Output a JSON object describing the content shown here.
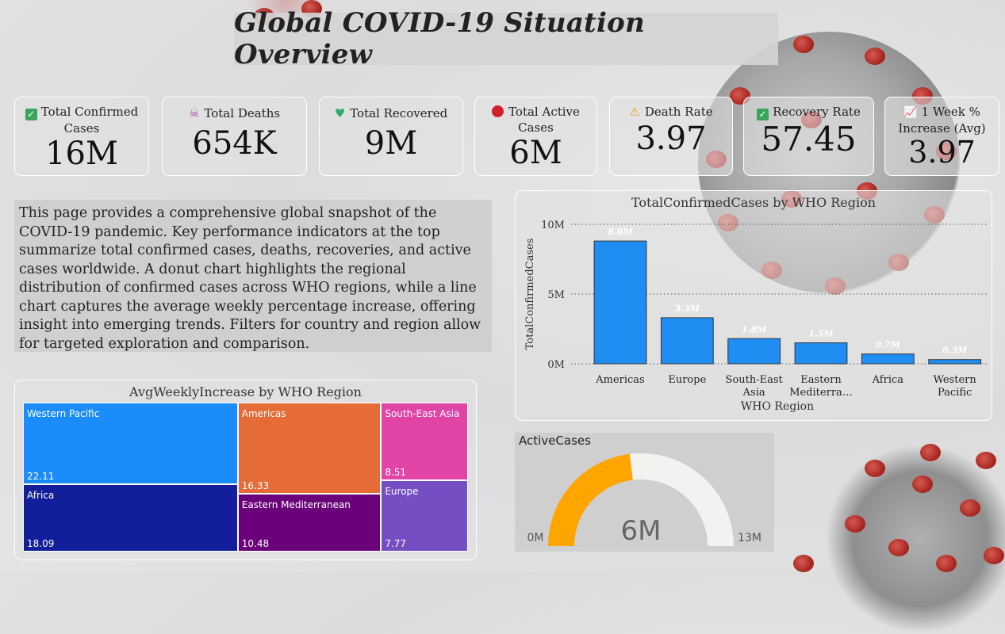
{
  "title": "Global COVID-19 Situation Overview",
  "kpis": [
    {
      "label": "Total Confirmed Cases",
      "value": "16M",
      "icon": "check-icon"
    },
    {
      "label": "Total Deaths",
      "value": "654K",
      "icon": "skull-icon"
    },
    {
      "label": "Total Recovered",
      "value": "9M",
      "icon": "heart-icon"
    },
    {
      "label": "Total Active Cases",
      "value": "6M",
      "icon": "red-circle-icon"
    },
    {
      "label": "Death Rate",
      "value": "3.97",
      "icon": "warning-icon"
    },
    {
      "label": "Recovery Rate",
      "value": "57.45",
      "icon": "check-icon"
    },
    {
      "label": "1 Week % Increase (Avg)",
      "value": "3.97",
      "icon": "chart-increasing-icon"
    }
  ],
  "description": "This page provides a comprehensive global snapshot of the COVID-19 pandemic. Key performance indicators at the top summarize total confirmed cases, deaths, recoveries, and active cases worldwide. A donut chart highlights the regional distribution of confirmed cases across WHO regions, while a line chart captures the average weekly percentage increase, offering insight into emerging trends. Filters for country and region allow for targeted exploration and comparison.",
  "chart_data": [
    {
      "type": "bar",
      "title": "TotalConfirmedCases by WHO Region",
      "xlabel": "WHO Region",
      "ylabel": "TotalConfirmedCases",
      "categories": [
        "Americas",
        "Europe",
        "South-East Asia",
        "Eastern Mediterra…",
        "Africa",
        "Western Pacific"
      ],
      "values": [
        8.8,
        3.3,
        1.8,
        1.5,
        0.7,
        0.3
      ],
      "data_labels": [
        "8.8M",
        "3.3M",
        "1.8M",
        "1.5M",
        "0.7M",
        "0.3M"
      ],
      "ylim": [
        0,
        10
      ],
      "yticks": [
        "0M",
        "5M",
        "10M"
      ],
      "grid": true,
      "color": "#1f8df2"
    },
    {
      "type": "table",
      "subtype": "treemap",
      "title": "AvgWeeklyIncrease by WHO Region",
      "items": [
        {
          "name": "Western Pacific",
          "value": "22.11",
          "color": "#1a8cfb"
        },
        {
          "name": "Africa",
          "value": "18.09",
          "color": "#131f9a"
        },
        {
          "name": "Americas",
          "value": "16.33",
          "color": "#e66c37"
        },
        {
          "name": "Eastern Mediterranean",
          "value": "10.48",
          "color": "#6b007b"
        },
        {
          "name": "South-East Asia",
          "value": "8.51",
          "color": "#e044a7"
        },
        {
          "name": "Europe",
          "value": "7.77",
          "color": "#744ec2"
        }
      ]
    },
    {
      "type": "pie",
      "subtype": "gauge",
      "title": "ActiveCases",
      "value": 6,
      "min": 0,
      "max": 13,
      "value_label": "6M",
      "min_label": "0M",
      "max_label": "13M",
      "color": "#ffa500",
      "track_color": "#f3f2f1"
    }
  ]
}
